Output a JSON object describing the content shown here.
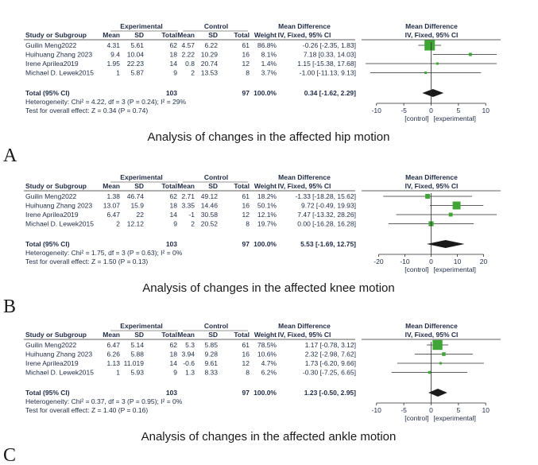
{
  "header": {
    "experimental": "Experimental",
    "control": "Control",
    "md_top": "Mean Difference",
    "md_sub": "IV, Fixed, 95% CI",
    "plot_top": "Mean Difference",
    "plot_sub": "IV, Fixed, 95% CI",
    "study": "Study or Subgroup",
    "mean": "Mean",
    "sd": "SD",
    "total": "Total",
    "weight": "Weight",
    "favours_left": "[control]",
    "favours_right": "[experimental]"
  },
  "chart_data": [
    {
      "panel_letter": "A",
      "caption": "Analysis of changes in the affected hip motion",
      "type": "forest",
      "xlim": [
        -12,
        12
      ],
      "x_ticks": [
        -10,
        -5,
        0,
        5,
        10
      ],
      "x_tick_labels": [
        "-10",
        "-5",
        "0",
        "5",
        "10"
      ],
      "studies": [
        {
          "name": "Guilin Meng2022",
          "exp_mean": "4.31",
          "exp_sd": "5.61",
          "exp_total": "62",
          "ctl_mean": "4.57",
          "ctl_sd": "6.22",
          "ctl_total": "61",
          "weight": "86.8%",
          "ci_text": "-0.26 [-2.35, 1.83]",
          "md": -0.26,
          "lo": -2.35,
          "hi": 1.83,
          "w": 86.8
        },
        {
          "name": "Huihuang Zhang 2023",
          "exp_mean": "9.4",
          "exp_sd": "10.04",
          "exp_total": "18",
          "ctl_mean": "2.22",
          "ctl_sd": "10.29",
          "ctl_total": "16",
          "weight": "8.1%",
          "ci_text": "7.18 [0.33, 14.03]",
          "md": 7.18,
          "lo": 0.33,
          "hi": 14.03,
          "w": 8.1
        },
        {
          "name": "Irene Aprilea2019",
          "exp_mean": "1.95",
          "exp_sd": "22.23",
          "exp_total": "14",
          "ctl_mean": "0.8",
          "ctl_sd": "20.74",
          "ctl_total": "12",
          "weight": "1.4%",
          "ci_text": "1.15 [-15.38, 17.68]",
          "md": 1.15,
          "lo": -15.38,
          "hi": 17.68,
          "w": 1.4
        },
        {
          "name": "Michael D. Lewek2015",
          "exp_mean": "1",
          "exp_sd": "5.87",
          "exp_total": "9",
          "ctl_mean": "2",
          "ctl_sd": "13.53",
          "ctl_total": "8",
          "weight": "3.7%",
          "ci_text": "-1.00 [-11.13, 9.13]",
          "md": -1.0,
          "lo": -11.13,
          "hi": 9.13,
          "w": 3.7
        }
      ],
      "total": {
        "label": "Total (95% CI)",
        "exp_total": "103",
        "ctl_total": "97",
        "weight": "100.0%",
        "ci_text": "0.34 [-1.62, 2.29]",
        "md": 0.34,
        "lo": -1.62,
        "hi": 2.29
      },
      "heterogeneity": "Heterogeneity: Chi² = 4.22, df = 3 (P = 0.24); I² = 29%",
      "overall_effect": "Test for overall effect: Z = 0.34 (P = 0.74)"
    },
    {
      "panel_letter": "B",
      "caption": "Analysis of changes in the affected knee motion",
      "type": "forest",
      "xlim": [
        -25,
        25
      ],
      "x_ticks": [
        -20,
        -10,
        0,
        10,
        20
      ],
      "x_tick_labels": [
        "-20",
        "-10",
        "0",
        "10",
        "20"
      ],
      "studies": [
        {
          "name": "Guilin Meng2022",
          "exp_mean": "1.38",
          "exp_sd": "46.74",
          "exp_total": "62",
          "ctl_mean": "2.71",
          "ctl_sd": "49.12",
          "ctl_total": "61",
          "weight": "18.2%",
          "ci_text": "-1.33 [-18.28, 15.62]",
          "md": -1.33,
          "lo": -18.28,
          "hi": 15.62,
          "w": 18.2
        },
        {
          "name": "Huihuang Zhang 2023",
          "exp_mean": "13.07",
          "exp_sd": "15.9",
          "exp_total": "18",
          "ctl_mean": "3.35",
          "ctl_sd": "14.46",
          "ctl_total": "16",
          "weight": "50.1%",
          "ci_text": "9.72 [-0.49, 19.93]",
          "md": 9.72,
          "lo": -0.49,
          "hi": 19.93,
          "w": 50.1
        },
        {
          "name": "Irene Aprilea2019",
          "exp_mean": "6.47",
          "exp_sd": "22",
          "exp_total": "14",
          "ctl_mean": "-1",
          "ctl_sd": "30.58",
          "ctl_total": "12",
          "weight": "12.1%",
          "ci_text": "7.47 [-13.32, 28.26]",
          "md": 7.47,
          "lo": -13.32,
          "hi": 28.26,
          "w": 12.1
        },
        {
          "name": "Michael D. Lewek2015",
          "exp_mean": "2",
          "exp_sd": "12.12",
          "exp_total": "9",
          "ctl_mean": "2",
          "ctl_sd": "20.52",
          "ctl_total": "8",
          "weight": "19.7%",
          "ci_text": "0.00 [-16.28, 16.28]",
          "md": 0.0,
          "lo": -16.28,
          "hi": 16.28,
          "w": 19.7
        }
      ],
      "total": {
        "label": "Total (95% CI)",
        "exp_total": "103",
        "ctl_total": "97",
        "weight": "100.0%",
        "ci_text": "5.53 [-1.69, 12.75]",
        "md": 5.53,
        "lo": -1.69,
        "hi": 12.75
      },
      "heterogeneity": "Heterogeneity: Chi² = 1.75, df = 3 (P = 0.63); I² = 0%",
      "overall_effect": "Test for overall effect: Z = 1.50 (P = 0.13)"
    },
    {
      "panel_letter": "C",
      "caption": "Analysis of changes in the affected ankle motion",
      "type": "forest",
      "xlim": [
        -12,
        12
      ],
      "x_ticks": [
        -10,
        -5,
        0,
        5,
        10
      ],
      "x_tick_labels": [
        "-10",
        "-5",
        "0",
        "5",
        "10"
      ],
      "studies": [
        {
          "name": "Guilin Meng2022",
          "exp_mean": "6.47",
          "exp_sd": "5.14",
          "exp_total": "62",
          "ctl_mean": "5.3",
          "ctl_sd": "5.85",
          "ctl_total": "61",
          "weight": "78.5%",
          "ci_text": "1.17 [-0.78, 3.12]",
          "md": 1.17,
          "lo": -0.78,
          "hi": 3.12,
          "w": 78.5
        },
        {
          "name": "Huihuang Zhang 2023",
          "exp_mean": "6.26",
          "exp_sd": "5.88",
          "exp_total": "18",
          "ctl_mean": "3.94",
          "ctl_sd": "9.28",
          "ctl_total": "16",
          "weight": "10.6%",
          "ci_text": "2.32 [-2.98, 7.62]",
          "md": 2.32,
          "lo": -2.98,
          "hi": 7.62,
          "w": 10.6
        },
        {
          "name": "Irene Aprilea2019",
          "exp_mean": "1.13",
          "exp_sd": "11.019",
          "exp_total": "14",
          "ctl_mean": "-0.6",
          "ctl_sd": "9.61",
          "ctl_total": "12",
          "weight": "4.7%",
          "ci_text": "1.73 [-6.20, 9.66]",
          "md": 1.73,
          "lo": -6.2,
          "hi": 9.66,
          "w": 4.7
        },
        {
          "name": "Michael D. Lewek2015",
          "exp_mean": "1",
          "exp_sd": "5.93",
          "exp_total": "9",
          "ctl_mean": "1.3",
          "ctl_sd": "8.33",
          "ctl_total": "8",
          "weight": "6.2%",
          "ci_text": "-0.30 [-7.25, 6.65]",
          "md": -0.3,
          "lo": -7.25,
          "hi": 6.65,
          "w": 6.2
        }
      ],
      "total": {
        "label": "Total (95% CI)",
        "exp_total": "103",
        "ctl_total": "97",
        "weight": "100.0%",
        "ci_text": "1.23 [-0.50, 2.95]",
        "md": 1.23,
        "lo": -0.5,
        "hi": 2.95
      },
      "heterogeneity": "Heterogeneity: Chi² = 0.37, df = 3 (P = 0.95); I² = 0%",
      "overall_effect": "Test for overall effect: Z = 1.40 (P = 0.16)"
    }
  ],
  "colors": {
    "study_marker": "#3fa535",
    "total_diamond": "#1a1a1a",
    "text": "#1f2a44",
    "rule": "#2a2a2a"
  }
}
